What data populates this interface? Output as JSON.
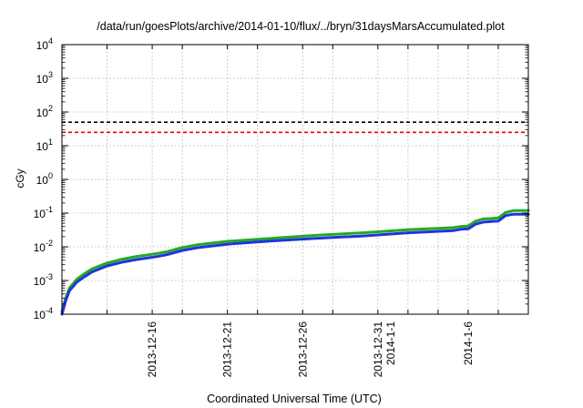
{
  "chart_data": {
    "type": "line",
    "title": "/data/run/goesPlots/archive/2014-01-10/flux/../bryn/31daysMarsAccumulated.plot",
    "xlabel": "Coordinated Universal Time (UTC)",
    "ylabel": "cGy",
    "yscale": "log",
    "ylim": [
      0.0001,
      10000
    ],
    "y_ticks": [
      {
        "value": 0.0001,
        "base": "10",
        "exp": "-4"
      },
      {
        "value": 0.001,
        "base": "10",
        "exp": "-3"
      },
      {
        "value": 0.01,
        "base": "10",
        "exp": "-2"
      },
      {
        "value": 0.1,
        "base": "10",
        "exp": "-1"
      },
      {
        "value": 1,
        "base": "10",
        "exp": "0"
      },
      {
        "value": 10,
        "base": "10",
        "exp": "1"
      },
      {
        "value": 100,
        "base": "10",
        "exp": "2"
      },
      {
        "value": 1000,
        "base": "10",
        "exp": "3"
      },
      {
        "value": 10000,
        "base": "10",
        "exp": "4"
      }
    ],
    "xlim": [
      "2013-12-10",
      "2014-01-10"
    ],
    "x_ticks": [
      {
        "date": "2013-12-16",
        "label": "2013-12-16",
        "label2": ""
      },
      {
        "date": "2013-12-21",
        "label": "2013-12-21",
        "label2": ""
      },
      {
        "date": "2013-12-26",
        "label": "2013-12-26",
        "label2": ""
      },
      {
        "date": "2013-12-31",
        "label": "2013-12-31",
        "label2": "2014-1-1"
      },
      {
        "date": "2014-01-06",
        "label": "2014-1-6",
        "label2": ""
      }
    ],
    "x_gridlines": [
      "2013-12-13",
      "2013-12-16",
      "2013-12-18",
      "2013-12-21",
      "2013-12-23",
      "2013-12-26",
      "2013-12-28",
      "2013-12-31",
      "2014-01-02",
      "2014-01-04",
      "2014-01-06",
      "2014-01-08"
    ],
    "grid": true,
    "reference_lines": [
      {
        "value": 50,
        "color": "#000000",
        "style": "dashed"
      },
      {
        "value": 25,
        "color": "#ee0000",
        "style": "dashed"
      }
    ],
    "series": [
      {
        "color": "#22aa22",
        "x": [
          "2013-12-10T00:00",
          "2013-12-10T06:00",
          "2013-12-10T12:00",
          "2013-12-11T00:00",
          "2013-12-11T12:00",
          "2013-12-12T00:00",
          "2013-12-13T00:00",
          "2013-12-14T00:00",
          "2013-12-15T00:00",
          "2013-12-16T00:00",
          "2013-12-16T12:00",
          "2013-12-17T00:00",
          "2013-12-18T00:00",
          "2013-12-19T00:00",
          "2013-12-21T00:00",
          "2013-12-24T00:00",
          "2013-12-27T00:00",
          "2013-12-30T00:00",
          "2014-01-02T00:00",
          "2014-01-05T00:00",
          "2014-01-05T12:00",
          "2014-01-06T00:00",
          "2014-01-06T12:00",
          "2014-01-07T00:00",
          "2014-01-07T12:00",
          "2014-01-08T00:00",
          "2014-01-08T12:00",
          "2014-01-09T00:00",
          "2014-01-10T00:00"
        ],
        "values": [
          0.00012,
          0.0003,
          0.0006,
          0.0011,
          0.0016,
          0.0022,
          0.0033,
          0.0043,
          0.0052,
          0.006,
          0.0065,
          0.0072,
          0.0095,
          0.0115,
          0.0145,
          0.018,
          0.022,
          0.026,
          0.032,
          0.037,
          0.04,
          0.041,
          0.058,
          0.067,
          0.069,
          0.072,
          0.105,
          0.118,
          0.12
        ]
      },
      {
        "color": "#2233dd",
        "x": [
          "2013-12-10T00:00",
          "2013-12-10T06:00",
          "2013-12-10T12:00",
          "2013-12-11T00:00",
          "2013-12-11T12:00",
          "2013-12-12T00:00",
          "2013-12-13T00:00",
          "2013-12-14T00:00",
          "2013-12-15T00:00",
          "2013-12-16T00:00",
          "2013-12-16T12:00",
          "2013-12-17T00:00",
          "2013-12-18T00:00",
          "2013-12-19T00:00",
          "2013-12-21T00:00",
          "2013-12-24T00:00",
          "2013-12-27T00:00",
          "2013-12-30T00:00",
          "2014-01-02T00:00",
          "2014-01-05T00:00",
          "2014-01-05T12:00",
          "2014-01-06T00:00",
          "2014-01-06T12:00",
          "2014-01-07T00:00",
          "2014-01-07T12:00",
          "2014-01-08T00:00",
          "2014-01-08T12:00",
          "2014-01-09T00:00",
          "2014-01-10T00:00"
        ],
        "values": [
          0.0001,
          0.00025,
          0.0005,
          0.0009,
          0.0013,
          0.0018,
          0.0027,
          0.0035,
          0.0042,
          0.0049,
          0.0053,
          0.0059,
          0.0078,
          0.0094,
          0.012,
          0.015,
          0.018,
          0.021,
          0.026,
          0.03,
          0.033,
          0.034,
          0.047,
          0.054,
          0.056,
          0.058,
          0.085,
          0.092,
          0.093
        ]
      }
    ]
  }
}
